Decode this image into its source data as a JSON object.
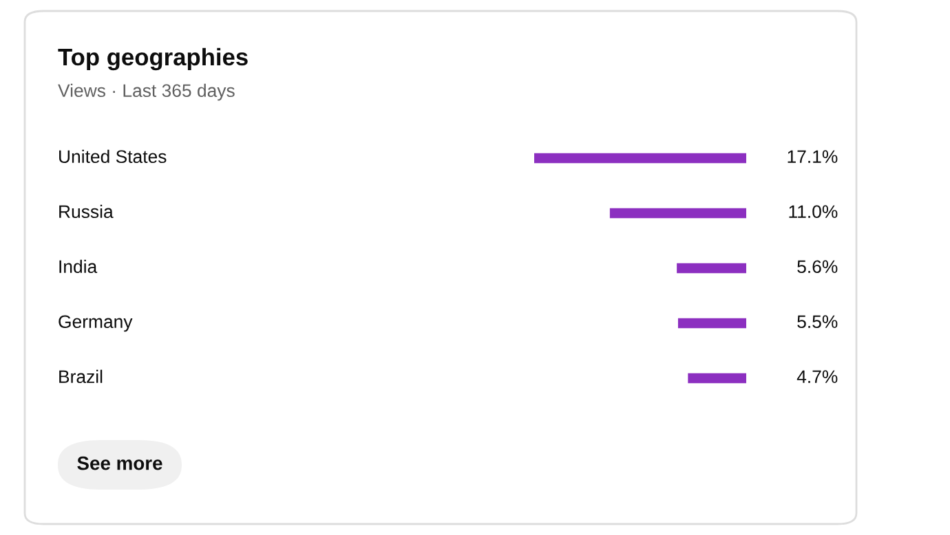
{
  "chart_data": {
    "type": "bar",
    "orientation": "horizontal",
    "title": "Top geographies",
    "subtitle": "Views · Last 365 days",
    "categories": [
      "United States",
      "Russia",
      "India",
      "Germany",
      "Brazil"
    ],
    "values": [
      17.1,
      11.0,
      5.6,
      5.5,
      4.7
    ],
    "value_labels": [
      "17.1%",
      "11.0%",
      "5.6%",
      "5.5%",
      "4.7%"
    ],
    "color": "#8c2fc0",
    "annotations": [
      "See more"
    ]
  }
}
